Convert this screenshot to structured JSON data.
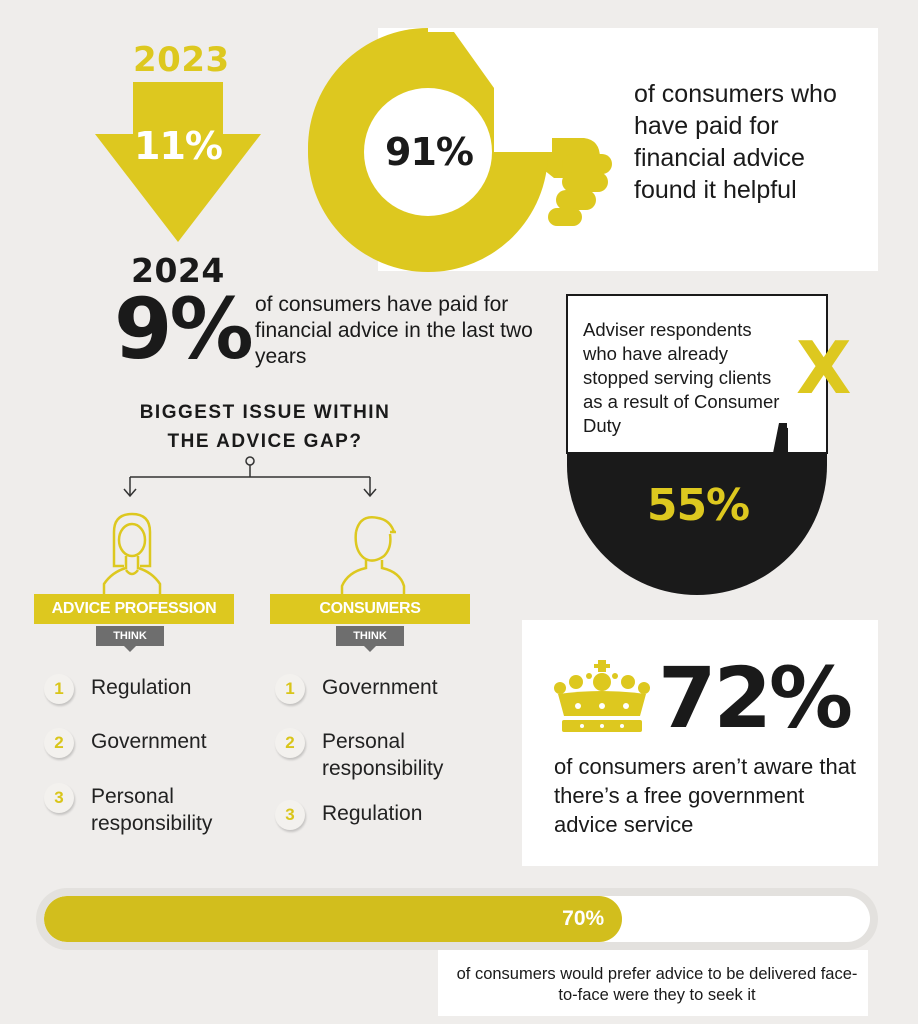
{
  "left_top": {
    "year_2023": "2023",
    "pct_2023": "11%",
    "year_2024": "2024",
    "pct_2024": "9%",
    "desc": "of consumers have paid for financial advice in the last two years"
  },
  "thumb_card": {
    "pct": "91%",
    "desc": "of consumers who have paid for financial advice found it helpful"
  },
  "adviser_card": {
    "desc": "Adviser respondents who have already stopped serving clients as a result of Consumer Duty",
    "mark": "X",
    "pct": "55%"
  },
  "issue": {
    "title_line1": "BIGGEST ISSUE WITHIN",
    "title_line2": "THE ADVICE GAP?",
    "groups": [
      {
        "label": "ADVICE PROFESSION",
        "think": "THINK",
        "items": [
          {
            "n": "1",
            "text": "Regulation"
          },
          {
            "n": "2",
            "text": "Government"
          },
          {
            "n": "3",
            "text": "Personal responsibility"
          }
        ]
      },
      {
        "label": "CONSUMERS",
        "think": "THINK",
        "items": [
          {
            "n": "1",
            "text": "Government"
          },
          {
            "n": "2",
            "text": "Personal responsibility"
          },
          {
            "n": "3",
            "text": "Regulation"
          }
        ]
      }
    ]
  },
  "crown_card": {
    "pct": "72%",
    "desc": "of consumers aren’t aware that there’s a free government advice service"
  },
  "progress": {
    "value": 0.7,
    "label": "70%",
    "desc": "of consumers would prefer advice to be delivered face-to-face were they to seek it"
  },
  "colors": {
    "accent": "#ddc81f",
    "dark": "#1a1a1a",
    "card": "#ffffff",
    "background": "#efedeb"
  }
}
